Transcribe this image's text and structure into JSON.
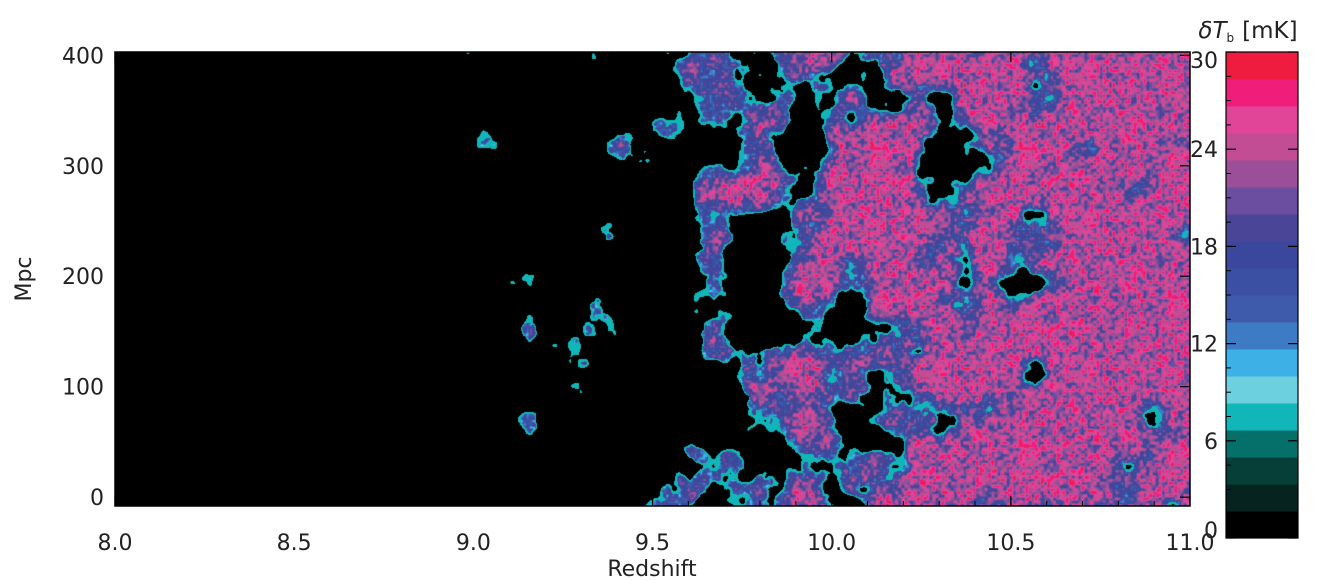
{
  "chart_data": {
    "type": "heatmap",
    "title": "",
    "xlabel": "Redshift",
    "ylabel": "Mpc",
    "xlim": [
      8.0,
      11.0
    ],
    "ylim": [
      -8,
      403
    ],
    "x_ticks": [
      8.0,
      8.5,
      9.0,
      9.5,
      10.0,
      10.5,
      11.0
    ],
    "x_tick_labels": [
      "8.0",
      "8.5",
      "9.0",
      "9.5",
      "10.0",
      "10.5",
      "11.0"
    ],
    "y_ticks": [
      0,
      100,
      200,
      300,
      400
    ],
    "y_tick_labels": [
      "0",
      "100",
      "200",
      "300",
      "400"
    ],
    "colorbar": {
      "label": "δT_b [mK]",
      "symbol": "δT",
      "subscript": "b",
      "unit": "[mK]",
      "range": [
        0,
        30
      ],
      "ticks": [
        0,
        6,
        12,
        18,
        24,
        30
      ],
      "tick_labels": [
        "0",
        "6",
        "12",
        "18",
        "24",
        "30"
      ],
      "colors": [
        "#000000",
        "#06231f",
        "#063f38",
        "#05706a",
        "#11b6b8",
        "#6dd0df",
        "#3db1e6",
        "#3d7cc5",
        "#3e5aab",
        "#3b50a2",
        "#3a479c",
        "#4a4597",
        "#6b4e9f",
        "#9a4f98",
        "#c24d94",
        "#e04598",
        "#f01d7b",
        "#ef1c3f"
      ]
    },
    "field": {
      "description_free": true,
      "ionized_fraction_by_redshift": [
        [
          8.0,
          0.0
        ],
        [
          8.6,
          0.04
        ],
        [
          9.0,
          0.2
        ],
        [
          9.4,
          0.35
        ],
        [
          9.8,
          0.55
        ],
        [
          10.2,
          0.75
        ],
        [
          10.6,
          0.85
        ],
        [
          11.0,
          0.9
        ]
      ]
    }
  }
}
